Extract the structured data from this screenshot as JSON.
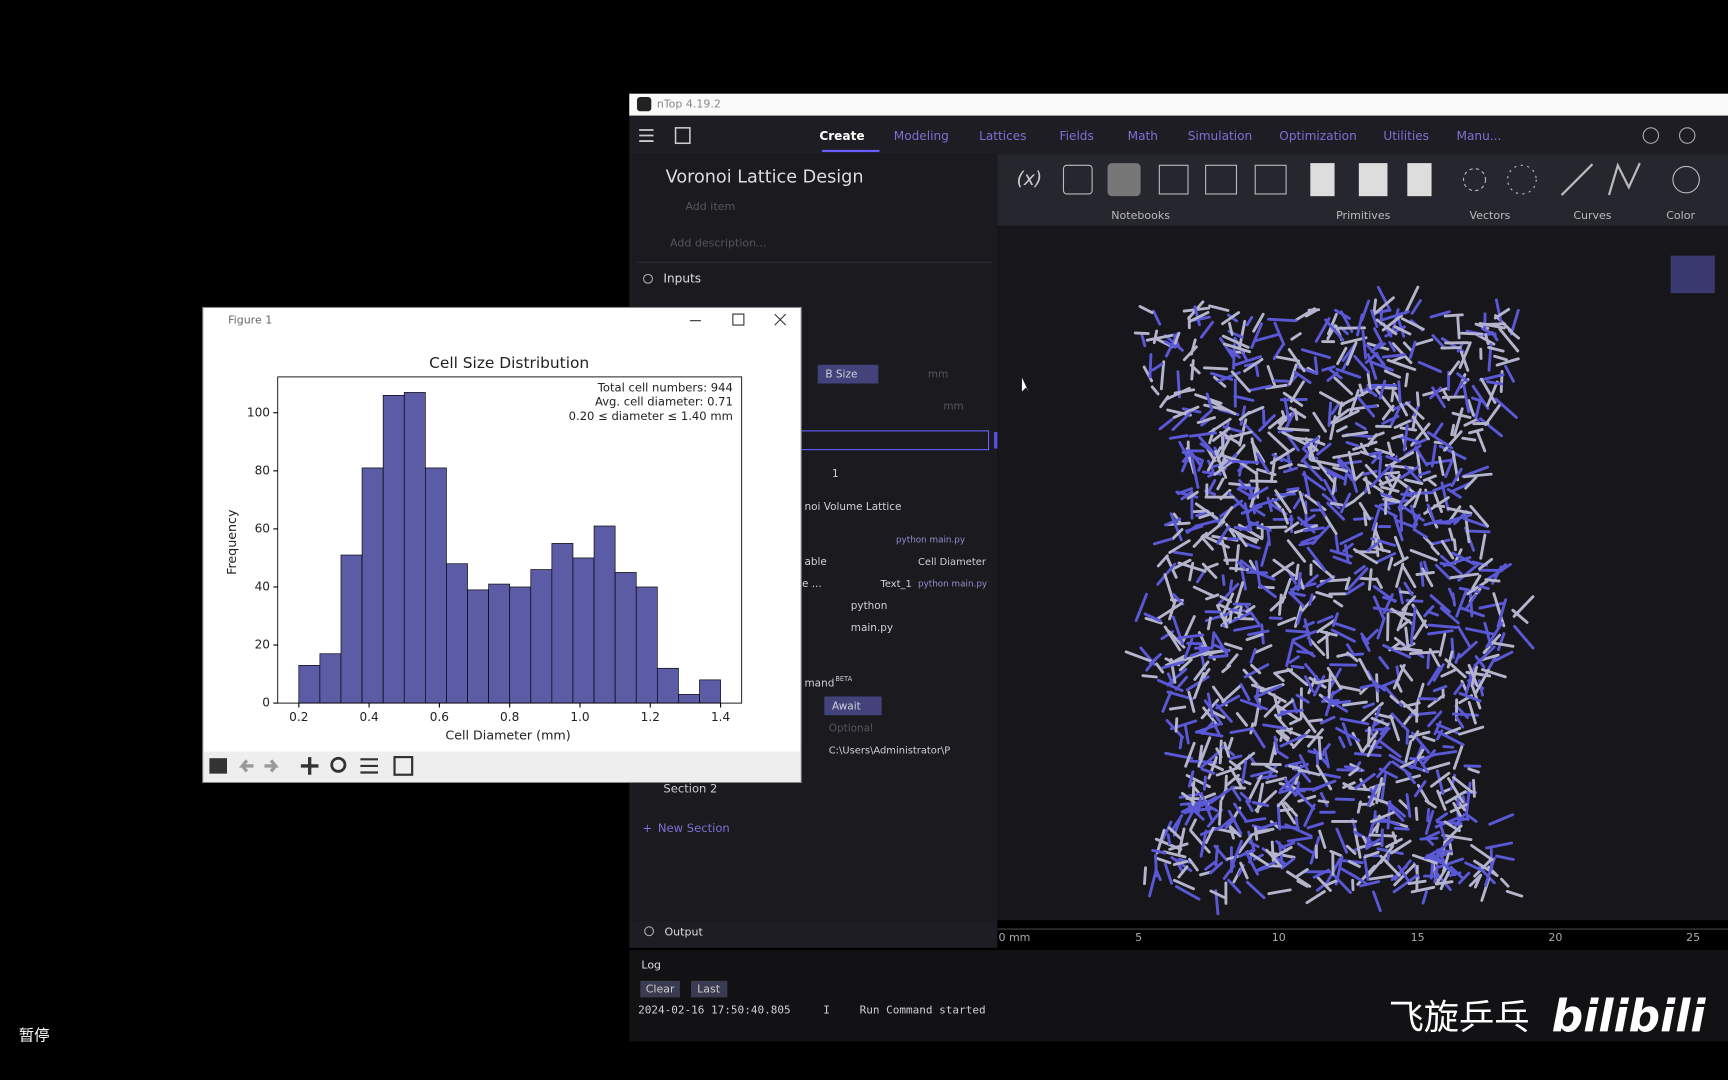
{
  "window": {
    "title": "nTop 4.19.2",
    "tabs": [
      "Create",
      "Modeling",
      "Lattices",
      "Fields",
      "Math",
      "Simulation",
      "Optimization",
      "Utilities",
      "Manu..."
    ],
    "notebook_title": "Voronoi Lattice Design",
    "add_item": "Add item",
    "description": "Add description...",
    "toolbar_groups": [
      "Notebooks",
      "Primitives",
      "Vectors",
      "Curves",
      "Color"
    ],
    "inputs": "Inputs",
    "fields": [
      "B Size",
      "mm",
      "mm",
      "1",
      "noi Volume Lattice",
      "python main.py",
      "able",
      "Cell Diameter",
      "te ...",
      "Text_1",
      "python main.py",
      "python",
      "main.py",
      "mand",
      "BETA",
      "Await",
      "Optional",
      "C:\\Users\\Administrator\\P"
    ],
    "section_2": "Section 2",
    "new_section": "New Section",
    "ruler": [
      "0 mm",
      "5",
      "10",
      "15",
      "20",
      "25"
    ],
    "output": "Output",
    "log_tab": "Log",
    "buttons": [
      "Clear",
      "Last"
    ],
    "log": {
      "time": "2024-02-16 17:50:40.805",
      "level": "I",
      "message": "Run Command started"
    }
  },
  "figure": {
    "title": "Figure 1"
  },
  "chart_data": {
    "type": "histogram",
    "title": "Cell Size Distribution",
    "x_label": "Cell Diameter (mm)",
    "y_label": "Frequency",
    "annotations": [
      "Total cell numbers: 944",
      "Avg. cell diameter: 0.71",
      "0.20 ≤ diameter ≤ 1.40 mm"
    ],
    "bins": [
      0.2,
      0.26,
      0.32,
      0.38,
      0.44,
      0.5,
      0.56,
      0.62,
      0.68,
      0.74,
      0.8,
      0.86,
      0.92,
      0.98,
      1.04,
      1.1,
      1.16,
      1.22,
      1.28,
      1.34,
      1.4
    ],
    "values": [
      13,
      17,
      51,
      81,
      106,
      107,
      81,
      48,
      39,
      41,
      40,
      46,
      55,
      50,
      61,
      45,
      40,
      12,
      3,
      8
    ],
    "color": "#5b5ba6",
    "edge_color": "#000000",
    "xlim": [
      0.14,
      1.46
    ],
    "ylim": [
      0,
      112.35
    ],
    "xticks": [
      0.2,
      0.4,
      0.6,
      0.8,
      {
        "value": 1,
        "label": "1.0"
      },
      1.2,
      1.4
    ],
    "yticks": [
      0,
      20,
      40,
      60,
      80,
      100
    ]
  },
  "overlay": {
    "pause": "暂停",
    "watermark": "飞旋乒乓",
    "logo": "bilibili"
  }
}
